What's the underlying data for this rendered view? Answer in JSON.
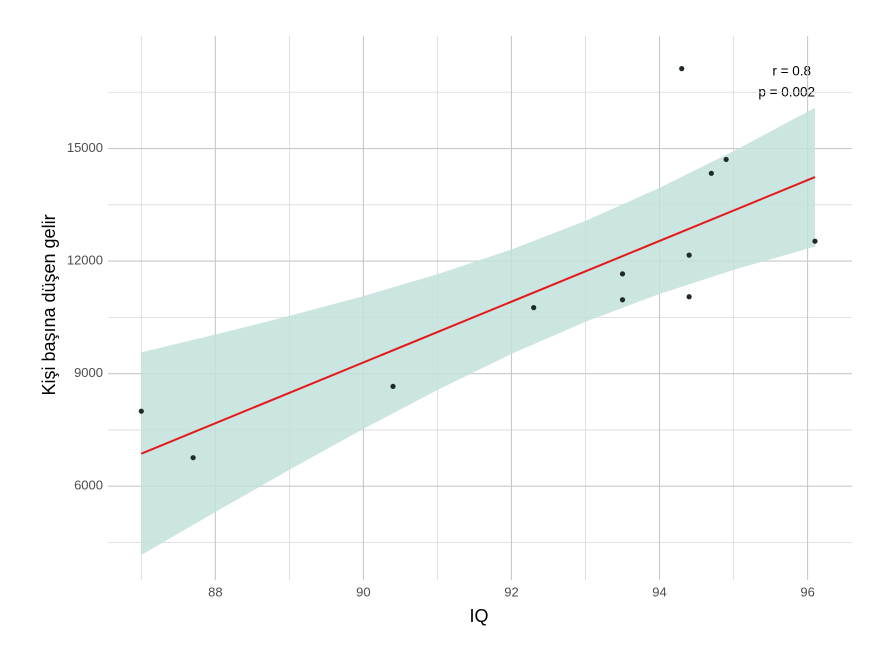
{
  "chart_data": {
    "type": "scatter",
    "x_label": "IQ",
    "y_label": "Kişi başına düşen gelir",
    "xlim": [
      86.55,
      96.6
    ],
    "ylim": [
      3500,
      18000
    ],
    "xticks": [
      88,
      90,
      92,
      94,
      96
    ],
    "yticks": [
      6000,
      9000,
      12000,
      15000
    ],
    "x_minor_grid": [
      87,
      89,
      91,
      93,
      95
    ],
    "y_minor_grid": [
      4500,
      7500,
      10500,
      13500,
      16500
    ],
    "grid": true,
    "points": {
      "color": "#1f2a2a",
      "x": [
        87,
        87.7,
        90.4,
        92.3,
        93.5,
        93.5,
        94.3,
        94.4,
        94.4,
        94.7,
        94.9,
        96.1
      ],
      "y": [
        8000,
        6760,
        8660,
        10760,
        11660,
        10970,
        17130,
        12160,
        11050,
        14340,
        14710,
        12530
      ]
    },
    "fit": {
      "color": "#e31a1c",
      "x": [
        87,
        96.1
      ],
      "y": [
        6868,
        14239
      ]
    },
    "band": {
      "color": "#c2e0da",
      "x": [
        87,
        88,
        89,
        90,
        91,
        92,
        93,
        94,
        95,
        96.1
      ],
      "lower": [
        4168,
        5314,
        6437,
        7528,
        8566,
        9526,
        10383,
        11124,
        11766,
        12389
      ],
      "upper": [
        9568,
        10042,
        10539,
        11068,
        11650,
        12310,
        13073,
        13952,
        14930,
        16089
      ]
    },
    "annotations": [
      "r = 0.8",
      "p = 0.002"
    ]
  }
}
